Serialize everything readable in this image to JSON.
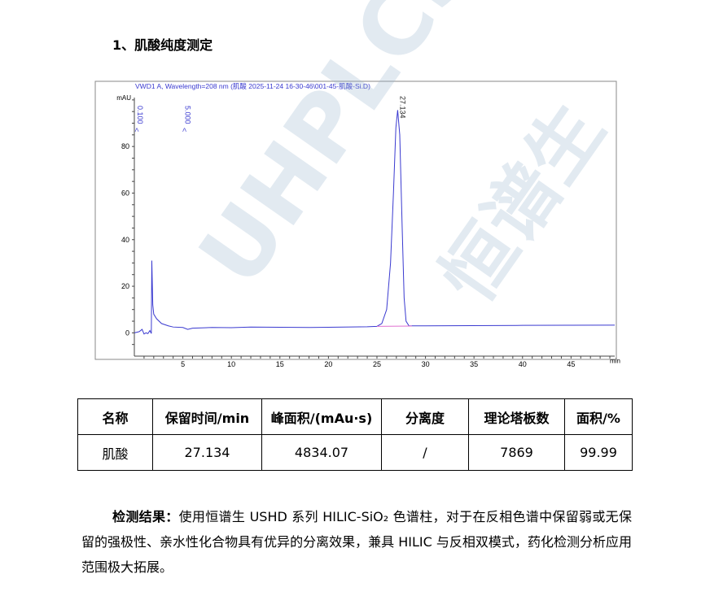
{
  "section_title": "1、肌酸纯度测定",
  "watermark": "UHPLCS 恒谱生 ®",
  "chart_data": {
    "type": "line",
    "title": "VWD1 A, Wavelength=208 nm (肌酸 2025-11-24 16-30-46\\001-45-肌酸-Si.D)",
    "ylabel": "mAU",
    "xlabel": "min",
    "xlim": [
      0,
      49.5
    ],
    "ylim": [
      -10,
      101
    ],
    "x_ticks": [
      5,
      10,
      15,
      20,
      25,
      30,
      35,
      40,
      45
    ],
    "y_ticks": [
      0,
      20,
      40,
      60,
      80
    ],
    "grid": false,
    "color": "#3a3ad0",
    "peak_labels": [
      {
        "x": 0.1,
        "label": "0.100",
        "mark": "<"
      },
      {
        "x": 5.0,
        "label": "5.000",
        "mark": "<"
      },
      {
        "x": 27.134,
        "label": "27.134"
      }
    ],
    "series": [
      {
        "x": [
          0,
          0.5,
          0.8,
          1.0,
          1.2,
          1.4,
          1.6,
          1.75,
          1.8,
          1.9,
          2.0,
          2.3,
          2.8,
          3.5,
          4,
          5,
          5.5,
          6,
          8,
          10,
          12,
          15,
          18,
          20,
          24,
          25,
          25.5,
          26,
          26.4,
          26.7,
          26.95,
          27.134,
          27.35,
          27.6,
          27.8,
          28,
          28.3,
          30,
          40,
          49.5
        ],
        "y": [
          0,
          0.5,
          1.5,
          -0.5,
          0,
          -0.3,
          1,
          -0.3,
          31,
          12,
          8,
          6,
          4,
          3,
          2.5,
          2.3,
          1.5,
          2,
          2.3,
          2.2,
          2.5,
          2.4,
          2.3,
          2.4,
          2.6,
          2.8,
          4,
          10,
          30,
          60,
          88,
          95.6,
          85,
          45,
          15,
          5,
          3,
          3,
          3.2,
          3.3
        ]
      }
    ],
    "baseline": {
      "x": [
        25,
        28.6
      ],
      "y": [
        2.8,
        2.9
      ],
      "color": "#e070d0"
    }
  },
  "table": {
    "headers": [
      "名称",
      "保留时间/min",
      "峰面积/(mAu·s)",
      "分离度",
      "理论塔板数",
      "面积/%"
    ],
    "rows": [
      [
        "肌酸",
        "27.134",
        "4834.07",
        "/",
        "7869",
        "99.99"
      ]
    ]
  },
  "result": {
    "label": "检测结果：",
    "text": "使用恒谱生 USHD 系列 HILIC-SiO₂ 色谱柱，对于在反相色谱中保留弱或无保留的强极性、亲水性化合物具有优异的分离效果，兼具 HILIC 与反相双模式，药化检测分析应用范围极大拓展。"
  }
}
